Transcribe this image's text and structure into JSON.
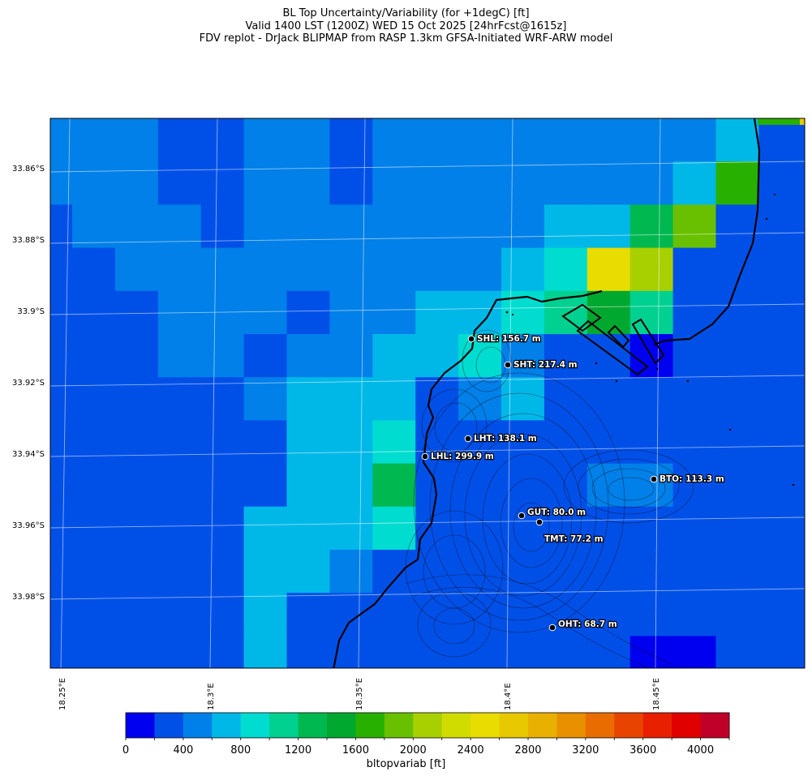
{
  "titles": [
    "BL Top Uncertainty/Variability (for +1degC) [ft]",
    "Valid 1400 LST (1200Z) WED 15 Oct 2025 [24hrFcst@1615z]",
    "FDV replot - DrJack BLIPMAP from RASP 1.3km GFSA-Initiated WRF-ARW model"
  ],
  "map": {
    "lat_ticks": [
      "33.86°S",
      "33.88°S",
      "33.9°S",
      "33.92°S",
      "33.94°S",
      "33.96°S",
      "33.98°S"
    ],
    "lon_ticks": [
      "18.25°E",
      "18.3°E",
      "18.35°E",
      "18.4°E",
      "18.45°E"
    ],
    "stations": [
      {
        "id": "SHL",
        "label": "SHL: 156.7 m"
      },
      {
        "id": "SHT",
        "label": "SHT: 217.4 m"
      },
      {
        "id": "LHT",
        "label": "LHT: 138.1 m"
      },
      {
        "id": "LHL",
        "label": "LHL: 299.9 m"
      },
      {
        "id": "BTO",
        "label": "BTO: 113.3 m"
      },
      {
        "id": "GUT",
        "label": "GUT: 80.0 m"
      },
      {
        "id": "TMT",
        "label": "TMT: 77.2 m"
      },
      {
        "id": "OHT",
        "label": "OHT: 68.7 m"
      }
    ],
    "grid_rows": [
      "CDDCCCCCCDDCCCCCCCCCCCCCCCCCCCCCCCDDDDDDDDDD",
      "CCCCCCCCCCCCCCCCCCCCCCCCCCCCCCCCCCCCCCCCCCCC",
      "CCCCCCCCCCCCCCCCCCCCCCCCCCCCCCCCCCCCCCCCCCCC",
      "CCCCCCCCCCCCCCCCCCCCCCCCCCCCCCCCCCCCCCCCCCCC"
    ],
    "colormap": [
      "#0000f0",
      "#0050e8",
      "#0080e8",
      "#00b8e8",
      "#00dcd0",
      "#00d090",
      "#00b850",
      "#00a830",
      "#28b000",
      "#68c000",
      "#a8d000",
      "#d0dc00",
      "#e8dc00",
      "#e8c800",
      "#e8b000",
      "#e89000",
      "#e86c00",
      "#e84400",
      "#e82000",
      "#e00000",
      "#c00028"
    ]
  },
  "colorbar": {
    "min": 0,
    "max": 4200,
    "step": 200,
    "tick_labels": [
      "0",
      "400",
      "800",
      "1200",
      "1600",
      "2000",
      "2400",
      "2800",
      "3200",
      "3600",
      "4000"
    ],
    "label": "bltopvariab [ft]"
  }
}
